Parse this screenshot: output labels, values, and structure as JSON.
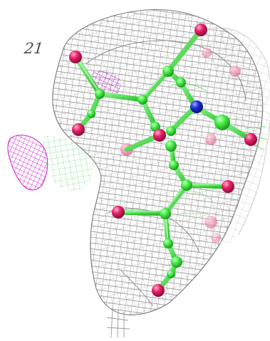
{
  "figure": {
    "panel_label": "21",
    "colors": {
      "background": "#ffffff",
      "density_mesh": "#8c8c8c",
      "density_mesh_faint": "#c4c4c4",
      "magenta_mesh": "#cc22cc",
      "green_mesh": "#7de27d",
      "carbon": "#44ee44",
      "oxygen": "#e8206a",
      "nitrogen": "#1a2fd8"
    },
    "icons": [
      "electron-density-mesh",
      "ball-and-stick-molecule"
    ]
  }
}
